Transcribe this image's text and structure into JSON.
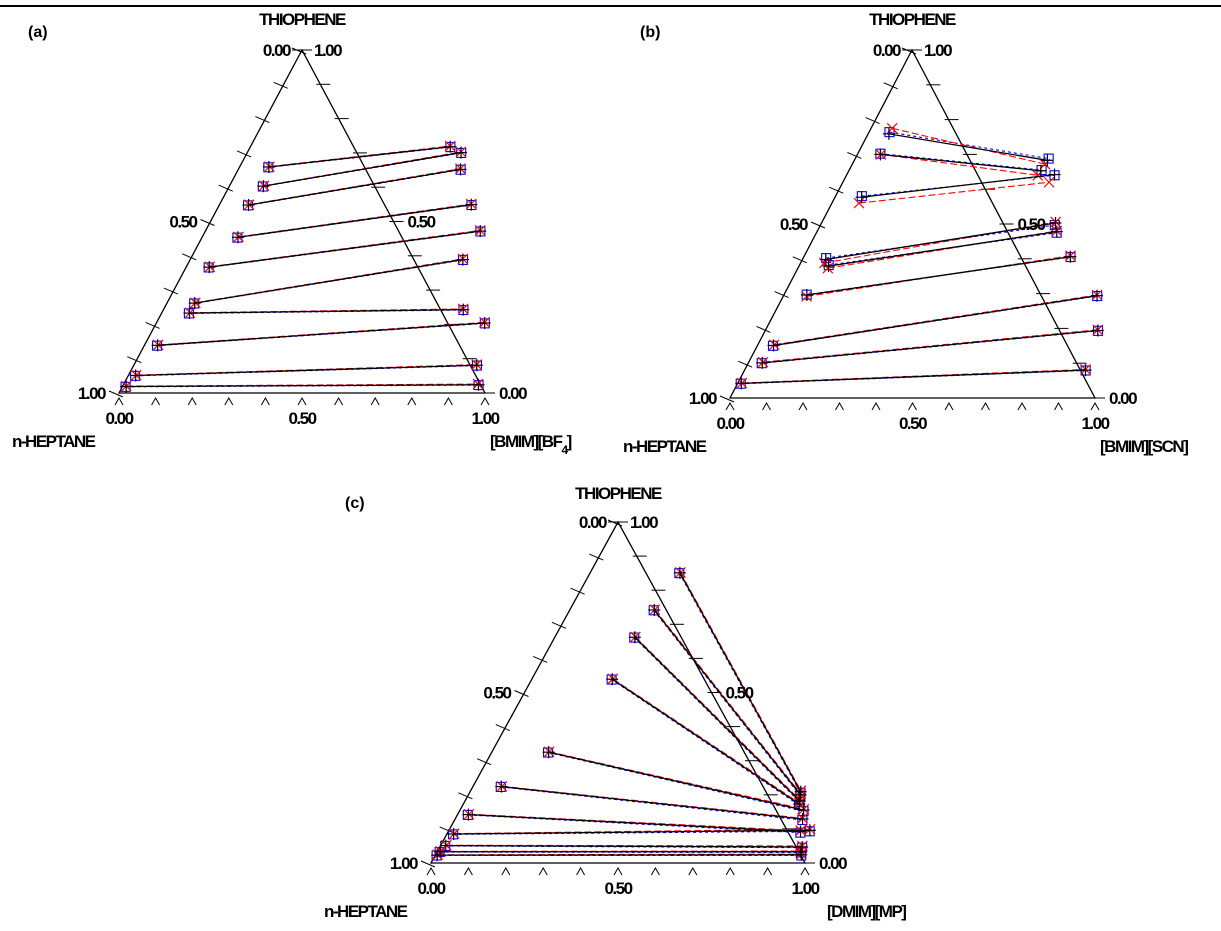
{
  "chart_data": [
    {
      "type": "ternary",
      "panel": "(a)",
      "top_label": "THIOPHENE",
      "left_label": "n-HEPTANE",
      "right_label_main": "[BMIM][BF",
      "right_label_sub": "4",
      "right_label_end": "]",
      "left_ticks": [
        "1.00",
        "0.50",
        "0.00"
      ],
      "right_ticks": [
        "1.00",
        "0.50",
        "0.00"
      ],
      "bottom_ticks": [
        "0.00",
        "0.50",
        "1.00"
      ],
      "series": [
        {
          "kind": "experimental",
          "marker": "plus",
          "color": "#000000",
          "dash": "solid",
          "tielines": [
            [
              [
                0.01,
                0.019
              ],
              [
                0.97,
                0.024
              ]
            ],
            [
              [
                0.02,
                0.051
              ],
              [
                0.937,
                0.081
              ]
            ],
            [
              [
                0.036,
                0.139
              ],
              [
                0.897,
                0.204
              ]
            ],
            [
              [
                0.076,
                0.233
              ],
              [
                0.819,
                0.243
              ]
            ],
            [
              [
                0.076,
                0.262
              ],
              [
                0.745,
                0.389
              ]
            ],
            [
              [
                0.063,
                0.367
              ],
              [
                0.751,
                0.472
              ]
            ],
            [
              [
                0.098,
                0.454
              ],
              [
                0.688,
                0.549
              ]
            ],
            [
              [
                0.08,
                0.548
              ],
              [
                0.607,
                0.652
              ]
            ],
            [
              [
                0.093,
                0.603
              ],
              [
                0.584,
                0.701
              ]
            ],
            [
              [
                0.08,
                0.659
              ],
              [
                0.546,
                0.718
              ]
            ]
          ]
        },
        {
          "kind": "model-1",
          "marker": "cross",
          "color": "#ff0000",
          "dash": "long-dash",
          "tielines": [
            [
              [
                0.01,
                0.02
              ],
              [
                0.968,
                0.026
              ]
            ],
            [
              [
                0.021,
                0.052
              ],
              [
                0.936,
                0.083
              ]
            ],
            [
              [
                0.037,
                0.14
              ],
              [
                0.896,
                0.206
              ]
            ],
            [
              [
                0.077,
                0.234
              ],
              [
                0.818,
                0.245
              ]
            ],
            [
              [
                0.077,
                0.263
              ],
              [
                0.744,
                0.391
              ]
            ],
            [
              [
                0.064,
                0.368
              ],
              [
                0.75,
                0.474
              ]
            ],
            [
              [
                0.099,
                0.455
              ],
              [
                0.687,
                0.551
              ]
            ],
            [
              [
                0.081,
                0.549
              ],
              [
                0.606,
                0.654
              ]
            ],
            [
              [
                0.094,
                0.604
              ],
              [
                0.583,
                0.703
              ]
            ],
            [
              [
                0.081,
                0.66
              ],
              [
                0.545,
                0.72
              ]
            ]
          ]
        },
        {
          "kind": "model-2",
          "marker": "square",
          "color": "#0000ff",
          "dash": "short-dash",
          "tielines": [
            [
              [
                0.009,
                0.018
              ],
              [
                0.971,
                0.023
              ]
            ],
            [
              [
                0.019,
                0.05
              ],
              [
                0.938,
                0.08
              ]
            ],
            [
              [
                0.035,
                0.138
              ],
              [
                0.898,
                0.203
              ]
            ],
            [
              [
                0.075,
                0.232
              ],
              [
                0.82,
                0.242
              ]
            ],
            [
              [
                0.075,
                0.261
              ],
              [
                0.746,
                0.388
              ]
            ],
            [
              [
                0.062,
                0.366
              ],
              [
                0.752,
                0.471
              ]
            ],
            [
              [
                0.097,
                0.453
              ],
              [
                0.689,
                0.548
              ]
            ],
            [
              [
                0.079,
                0.547
              ],
              [
                0.608,
                0.651
              ]
            ],
            [
              [
                0.092,
                0.602
              ],
              [
                0.585,
                0.7
              ]
            ],
            [
              [
                0.079,
                0.658
              ],
              [
                0.547,
                0.717
              ]
            ]
          ]
        }
      ]
    },
    {
      "type": "ternary",
      "panel": "(b)",
      "top_label": "THIOPHENE",
      "left_label": "n-HEPTANE",
      "right_label_main": "[BMIM][SCN]",
      "right_label_sub": "",
      "right_label_end": "",
      "left_ticks": [
        "1.00",
        "0.50",
        "0.00"
      ],
      "right_ticks": [
        "1.00",
        "0.50",
        "0.00"
      ],
      "bottom_ticks": [
        "0.00",
        "0.50",
        "1.00"
      ],
      "series": [
        {
          "kind": "experimental",
          "marker": "plus",
          "color": "#000000",
          "dash": "solid",
          "tielines": [
            [
              [
                0.01,
                0.042
              ],
              [
                0.934,
                0.08
              ]
            ],
            [
              [
                0.038,
                0.101
              ],
              [
                0.911,
                0.194
              ]
            ],
            [
              [
                0.044,
                0.151
              ],
              [
                0.859,
                0.294
              ]
            ],
            [
              [
                0.063,
                0.296
              ],
              [
                0.73,
                0.406
              ]
            ],
            [
              [
                0.064,
                0.398
              ],
              [
                0.641,
                0.503
              ]
            ],
            [
              [
                0.081,
                0.379
              ],
              [
                0.657,
                0.478
              ]
            ],
            [
              [
                0.073,
                0.577
              ],
              [
                0.569,
                0.642
              ]
            ],
            [
              [
                0.063,
                0.7
              ],
              [
                0.526,
                0.653
              ]
            ],
            [
              [
                0.057,
                0.759
              ],
              [
                0.529,
                0.683
              ]
            ]
          ]
        },
        {
          "kind": "model-1",
          "marker": "cross",
          "color": "#ff0000",
          "dash": "long-dash",
          "tielines": [
            [
              [
                0.011,
                0.043
              ],
              [
                0.933,
                0.082
              ]
            ],
            [
              [
                0.039,
                0.103
              ],
              [
                0.91,
                0.196
              ]
            ],
            [
              [
                0.045,
                0.153
              ],
              [
                0.858,
                0.296
              ]
            ],
            [
              [
                0.064,
                0.292
              ],
              [
                0.729,
                0.409
              ]
            ],
            [
              [
                0.065,
                0.388
              ],
              [
                0.64,
                0.506
              ]
            ],
            [
              [
                0.082,
                0.373
              ],
              [
                0.656,
                0.48
              ]
            ],
            [
              [
                0.074,
                0.56
              ],
              [
                0.565,
                0.62
              ]
            ],
            [
              [
                0.064,
                0.7
              ],
              [
                0.524,
                0.64
              ]
            ],
            [
              [
                0.058,
                0.775
              ],
              [
                0.528,
                0.672
              ]
            ]
          ]
        },
        {
          "kind": "model-2",
          "marker": "square",
          "color": "#0000ff",
          "dash": "short-dash",
          "tielines": [
            [
              [
                0.009,
                0.041
              ],
              [
                0.935,
                0.079
              ]
            ],
            [
              [
                0.037,
                0.1
              ],
              [
                0.912,
                0.193
              ]
            ],
            [
              [
                0.043,
                0.15
              ],
              [
                0.86,
                0.293
              ]
            ],
            [
              [
                0.062,
                0.297
              ],
              [
                0.731,
                0.405
              ]
            ],
            [
              [
                0.063,
                0.402
              ],
              [
                0.642,
                0.497
              ]
            ],
            [
              [
                0.08,
                0.382
              ],
              [
                0.658,
                0.475
              ]
            ],
            [
              [
                0.072,
                0.58
              ],
              [
                0.57,
                0.64
              ]
            ],
            [
              [
                0.062,
                0.702
              ],
              [
                0.527,
                0.655
              ]
            ],
            [
              [
                0.056,
                0.764
              ],
              [
                0.53,
                0.688
              ]
            ]
          ]
        }
      ]
    },
    {
      "type": "ternary",
      "panel": "(c)",
      "top_label": "THIOPHENE",
      "left_label": "n-HEPTANE",
      "right_label_main": "[DMIM][MP]",
      "right_label_sub": "",
      "right_label_end": "",
      "left_ticks": [
        "1.00",
        "0.50",
        "0.00"
      ],
      "right_ticks": [
        "1.00",
        "0.50",
        "0.00"
      ],
      "bottom_ticks": [
        "0.00",
        "0.50",
        "1.00"
      ],
      "series": [
        {
          "kind": "experimental",
          "marker": "plus",
          "color": "#000000",
          "dash": "solid",
          "tielines": [
            [
              [
                0.005,
                0.023
              ],
              [
                0.978,
                0.024
              ]
            ],
            [
              [
                0.008,
                0.033
              ],
              [
                0.972,
                0.033
              ]
            ],
            [
              [
                0.014,
                0.051
              ],
              [
                0.969,
                0.047
              ]
            ],
            [
              [
                0.018,
                0.085
              ],
              [
                0.965,
                0.096
              ]
            ],
            [
              [
                0.029,
                0.142
              ],
              [
                0.942,
                0.092
              ]
            ],
            [
              [
                0.076,
                0.224
              ],
              [
                0.929,
                0.129
              ]
            ],
            [
              [
                0.152,
                0.325
              ],
              [
                0.919,
                0.155
              ]
            ],
            [
              [
                0.215,
                0.539
              ],
              [
                0.898,
                0.173
              ]
            ],
            [
              [
                0.214,
                0.662
              ],
              [
                0.895,
                0.182
              ]
            ],
            [
              [
                0.226,
                0.742
              ],
              [
                0.888,
                0.2
              ]
            ],
            [
              [
                0.24,
                0.851
              ],
              [
                0.884,
                0.209
              ]
            ]
          ]
        },
        {
          "kind": "model-1",
          "marker": "cross",
          "color": "#ff0000",
          "dash": "long-dash",
          "tielines": [
            [
              [
                0.006,
                0.024
              ],
              [
                0.977,
                0.026
              ]
            ],
            [
              [
                0.009,
                0.034
              ],
              [
                0.971,
                0.035
              ]
            ],
            [
              [
                0.015,
                0.052
              ],
              [
                0.968,
                0.05
              ]
            ],
            [
              [
                0.019,
                0.086
              ],
              [
                0.964,
                0.099
              ]
            ],
            [
              [
                0.03,
                0.143
              ],
              [
                0.941,
                0.095
              ]
            ],
            [
              [
                0.077,
                0.225
              ],
              [
                0.928,
                0.131
              ]
            ],
            [
              [
                0.153,
                0.326
              ],
              [
                0.918,
                0.158
              ]
            ],
            [
              [
                0.216,
                0.54
              ],
              [
                0.897,
                0.176
              ]
            ],
            [
              [
                0.215,
                0.663
              ],
              [
                0.894,
                0.185
              ]
            ],
            [
              [
                0.227,
                0.743
              ],
              [
                0.887,
                0.203
              ]
            ],
            [
              [
                0.241,
                0.852
              ],
              [
                0.883,
                0.212
              ]
            ]
          ]
        },
        {
          "kind": "model-2",
          "marker": "square",
          "color": "#0000ff",
          "dash": "short-dash",
          "tielines": [
            [
              [
                0.004,
                0.022
              ],
              [
                0.979,
                0.022
              ]
            ],
            [
              [
                0.007,
                0.032
              ],
              [
                0.973,
                0.031
              ]
            ],
            [
              [
                0.013,
                0.05
              ],
              [
                0.97,
                0.045
              ]
            ],
            [
              [
                0.017,
                0.084
              ],
              [
                0.966,
                0.093
              ]
            ],
            [
              [
                0.028,
                0.141
              ],
              [
                0.943,
                0.089
              ]
            ],
            [
              [
                0.075,
                0.223
              ],
              [
                0.93,
                0.126
              ]
            ],
            [
              [
                0.151,
                0.324
              ],
              [
                0.92,
                0.152
              ]
            ],
            [
              [
                0.214,
                0.538
              ],
              [
                0.899,
                0.17
              ]
            ],
            [
              [
                0.213,
                0.661
              ],
              [
                0.896,
                0.179
              ]
            ],
            [
              [
                0.225,
                0.741
              ],
              [
                0.889,
                0.197
              ]
            ],
            [
              [
                0.239,
                0.85
              ],
              [
                0.885,
                0.206
              ]
            ]
          ]
        }
      ]
    }
  ]
}
